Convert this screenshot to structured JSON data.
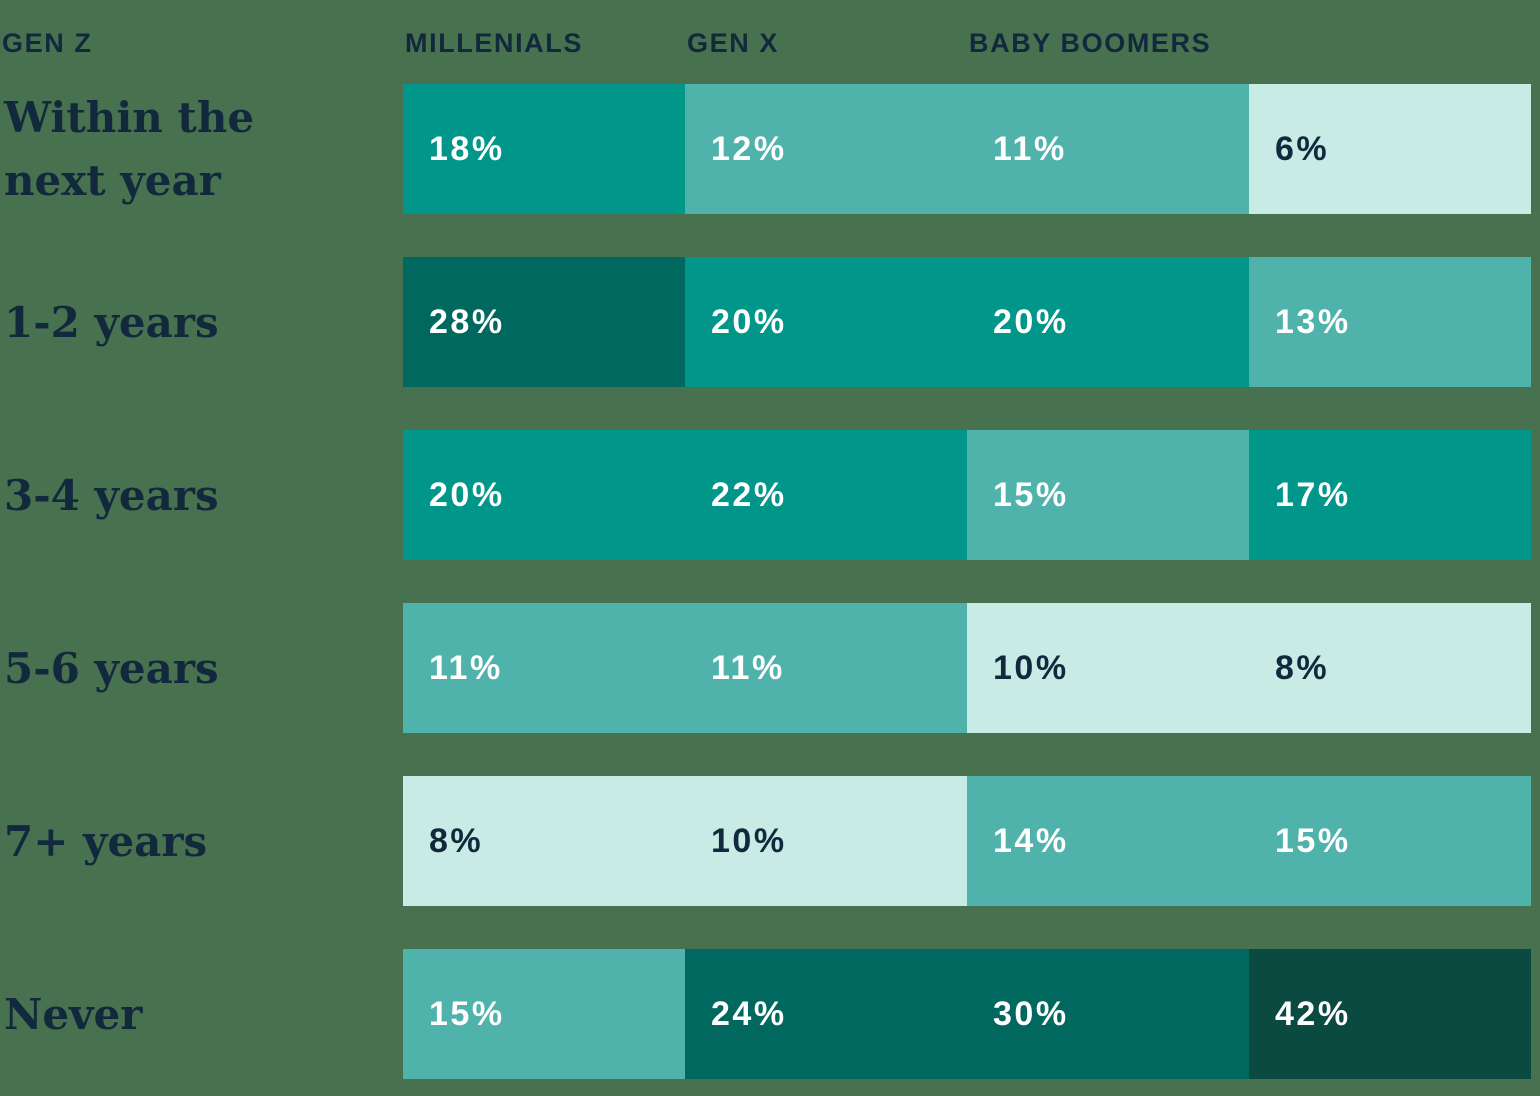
{
  "palette": {
    "background": "#487150",
    "darkest": "#0B4A40",
    "dark": "#00685E",
    "teal": "#00968A",
    "medium": "#4FB3AC",
    "light": "#C8EBE5",
    "navy": "#12293D",
    "white": "#FFFFFF"
  },
  "header": {
    "columns": [
      "GEN Z",
      "MILLENIALS",
      "GEN X",
      "BABY BOOMERS"
    ]
  },
  "rows": [
    {
      "label": "Within the next year",
      "cells": [
        {
          "value": "18%",
          "tone": "teal",
          "text": "white"
        },
        {
          "value": "12%",
          "tone": "medium",
          "text": "white"
        },
        {
          "value": "11%",
          "tone": "medium",
          "text": "white"
        },
        {
          "value": "6%",
          "tone": "light",
          "text": "navy"
        }
      ]
    },
    {
      "label": "1-2 years",
      "cells": [
        {
          "value": "28%",
          "tone": "dark",
          "text": "white"
        },
        {
          "value": "20%",
          "tone": "teal",
          "text": "white"
        },
        {
          "value": "20%",
          "tone": "teal",
          "text": "white"
        },
        {
          "value": "13%",
          "tone": "medium",
          "text": "white"
        }
      ]
    },
    {
      "label": "3-4 years",
      "cells": [
        {
          "value": "20%",
          "tone": "teal",
          "text": "white"
        },
        {
          "value": "22%",
          "tone": "teal",
          "text": "white"
        },
        {
          "value": "15%",
          "tone": "medium",
          "text": "white"
        },
        {
          "value": "17%",
          "tone": "teal",
          "text": "white"
        }
      ]
    },
    {
      "label": "5-6 years",
      "cells": [
        {
          "value": "11%",
          "tone": "medium",
          "text": "white"
        },
        {
          "value": "11%",
          "tone": "medium",
          "text": "white"
        },
        {
          "value": "10%",
          "tone": "light",
          "text": "navy"
        },
        {
          "value": "8%",
          "tone": "light",
          "text": "navy"
        }
      ]
    },
    {
      "label": "7+ years",
      "cells": [
        {
          "value": "8%",
          "tone": "light",
          "text": "navy"
        },
        {
          "value": "10%",
          "tone": "light",
          "text": "navy"
        },
        {
          "value": "14%",
          "tone": "medium",
          "text": "white"
        },
        {
          "value": "15%",
          "tone": "medium",
          "text": "white"
        }
      ]
    },
    {
      "label": "Never",
      "cells": [
        {
          "value": "15%",
          "tone": "medium",
          "text": "white"
        },
        {
          "value": "24%",
          "tone": "dark",
          "text": "white"
        },
        {
          "value": "30%",
          "tone": "dark",
          "text": "white"
        },
        {
          "value": "42%",
          "tone": "darkest",
          "text": "white"
        }
      ]
    }
  ],
  "chart_data": {
    "type": "heatmap",
    "title": "",
    "categories": [
      "GEN Z",
      "MILLENIALS",
      "GEN X",
      "BABY BOOMERS"
    ],
    "row_labels": [
      "Within the next year",
      "1-2 years",
      "3-4 years",
      "5-6 years",
      "7+ years",
      "Never"
    ],
    "unit": "%",
    "values": [
      [
        18,
        12,
        11,
        6
      ],
      [
        28,
        20,
        20,
        13
      ],
      [
        20,
        22,
        15,
        17
      ],
      [
        11,
        11,
        10,
        8
      ],
      [
        8,
        10,
        14,
        15
      ],
      [
        15,
        24,
        30,
        42
      ]
    ],
    "legend_position": "none",
    "grid": false,
    "color_scale_note": "darker cell color = higher percentage"
  }
}
